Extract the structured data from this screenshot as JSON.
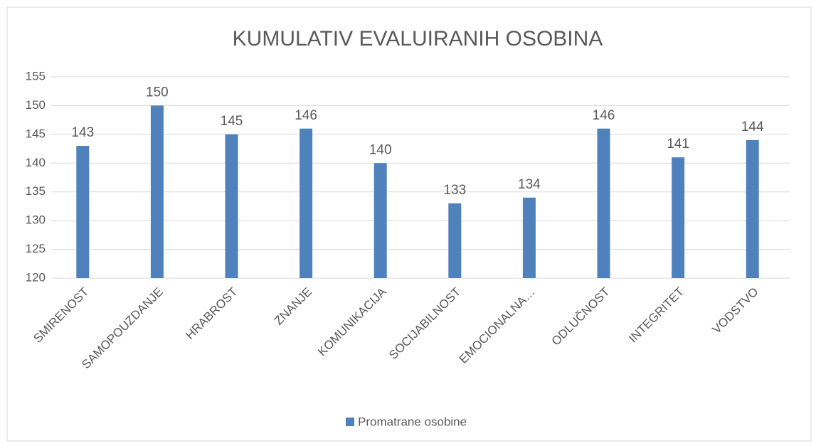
{
  "chart_data": {
    "type": "bar",
    "title": "KUMULATIV EVALUIRANIH OSOBINA",
    "categories": [
      "SMIRENOST",
      "SAMOPOUZDANJE",
      "HRABROST",
      "ZNANJE",
      "KOMUNIKACIJA",
      "SOCIJABILNOST",
      "EMOCIONALNA…",
      "ODLUČNOST",
      "INTEGRITET",
      "VODSTVO"
    ],
    "series": [
      {
        "name": "Promatrane osobine",
        "color": "#4f81bd",
        "values": [
          143,
          150,
          145,
          146,
          140,
          133,
          134,
          146,
          141,
          144
        ]
      }
    ],
    "ylim": [
      120,
      155
    ],
    "yticks": [
      120,
      125,
      130,
      135,
      140,
      145,
      150,
      155
    ],
    "grid": true,
    "legend": "bottom"
  }
}
